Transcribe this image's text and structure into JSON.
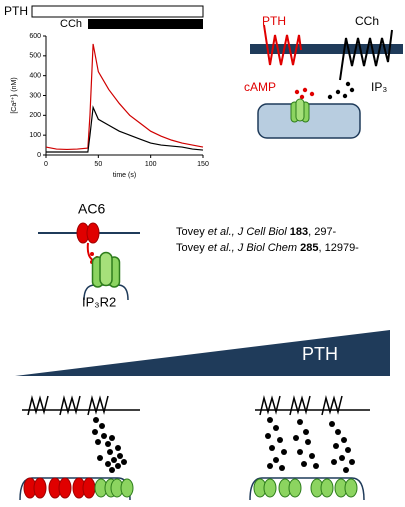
{
  "chart_data": {
    "type": "line",
    "annotations": [
      "PTH",
      "CCh"
    ],
    "xlabel": "time (s)",
    "ylabel": "[Ca²⁺]ᵢ (nM)",
    "x": [
      0,
      10,
      20,
      30,
      40,
      42,
      45,
      50,
      60,
      70,
      80,
      90,
      100,
      110,
      120,
      130,
      140,
      150
    ],
    "series": [
      {
        "color": "#d00000",
        "values": [
          40,
          30,
          28,
          30,
          35,
          200,
          560,
          420,
          330,
          260,
          200,
          160,
          120,
          95,
          75,
          60,
          50,
          40
        ]
      },
      {
        "color": "#000000",
        "values": [
          15,
          15,
          15,
          15,
          15,
          100,
          240,
          180,
          150,
          120,
          100,
          80,
          60,
          50,
          45,
          40,
          30,
          25
        ]
      }
    ],
    "xlim": [
      0,
      150
    ],
    "xticks": [
      0,
      50,
      100,
      150
    ],
    "ylim": [
      0,
      600
    ],
    "yticks": [
      0,
      100,
      200,
      300,
      400,
      500,
      600
    ]
  },
  "top_diagram": {
    "pth": "PTH",
    "cch": "CCh",
    "camp": "cAMP",
    "ip3": "IP₃"
  },
  "middle_diagram": {
    "ac6": "AC6",
    "ip3r2": "IP₃R2"
  },
  "references": [
    {
      "author": "Tovey ",
      "etal": "et al.,",
      "journal": " J Cell Biol",
      "volume": " 183",
      "pages": ", 297-"
    },
    {
      "author": "Tovey ",
      "etal": "et al.,",
      "journal": " J Biol Chem",
      "volume": " 285",
      "pages": ", 12979-"
    }
  ],
  "gradient": {
    "label": "PTH"
  }
}
